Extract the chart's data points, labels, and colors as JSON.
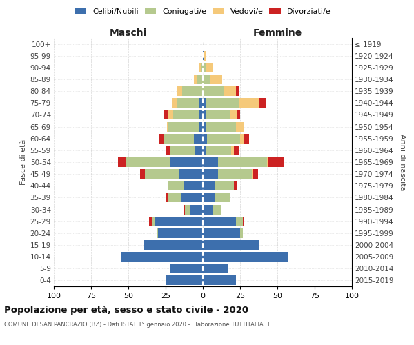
{
  "age_groups": [
    "0-4",
    "5-9",
    "10-14",
    "15-19",
    "20-24",
    "25-29",
    "30-34",
    "35-39",
    "40-44",
    "45-49",
    "50-54",
    "55-59",
    "60-64",
    "65-69",
    "70-74",
    "75-79",
    "80-84",
    "85-89",
    "90-94",
    "95-99",
    "100+"
  ],
  "birth_years": [
    "2015-2019",
    "2010-2014",
    "2005-2009",
    "2000-2004",
    "1995-1999",
    "1990-1994",
    "1985-1989",
    "1980-1984",
    "1975-1979",
    "1970-1974",
    "1965-1969",
    "1960-1964",
    "1955-1959",
    "1950-1954",
    "1945-1949",
    "1940-1944",
    "1935-1939",
    "1930-1934",
    "1925-1929",
    "1920-1924",
    "≤ 1919"
  ],
  "maschi": {
    "celibi": [
      25,
      22,
      55,
      40,
      30,
      32,
      9,
      15,
      13,
      16,
      22,
      5,
      6,
      3,
      3,
      3,
      0,
      0,
      0,
      0,
      0
    ],
    "coniugati": [
      0,
      0,
      0,
      0,
      1,
      2,
      3,
      8,
      10,
      23,
      30,
      17,
      20,
      20,
      17,
      14,
      14,
      4,
      1,
      0,
      0
    ],
    "vedovi": [
      0,
      0,
      0,
      0,
      0,
      0,
      0,
      0,
      0,
      0,
      0,
      0,
      0,
      1,
      3,
      4,
      3,
      2,
      2,
      0,
      0
    ],
    "divorziati": [
      0,
      0,
      0,
      0,
      0,
      2,
      1,
      2,
      0,
      3,
      5,
      3,
      3,
      0,
      3,
      0,
      0,
      0,
      0,
      0,
      0
    ]
  },
  "femmine": {
    "nubili": [
      22,
      17,
      57,
      38,
      25,
      22,
      7,
      8,
      8,
      10,
      10,
      2,
      3,
      2,
      2,
      2,
      0,
      0,
      0,
      1,
      0
    ],
    "coniugate": [
      0,
      0,
      0,
      0,
      2,
      5,
      5,
      10,
      13,
      23,
      33,
      17,
      22,
      20,
      16,
      22,
      14,
      5,
      2,
      0,
      0
    ],
    "vedove": [
      0,
      0,
      0,
      0,
      0,
      0,
      0,
      0,
      0,
      1,
      1,
      2,
      3,
      6,
      5,
      14,
      8,
      8,
      5,
      1,
      0
    ],
    "divorziate": [
      0,
      0,
      0,
      0,
      0,
      1,
      0,
      0,
      2,
      3,
      10,
      3,
      3,
      0,
      2,
      4,
      2,
      0,
      0,
      0,
      0
    ]
  },
  "colors": {
    "celibi": "#3d6fad",
    "coniugati": "#b5c98e",
    "vedovi": "#f5c97a",
    "divorziati": "#cc2222"
  },
  "xlim": 100,
  "title": "Popolazione per età, sesso e stato civile - 2020",
  "subtitle": "COMUNE DI SAN PANCRAZIO (BZ) - Dati ISTAT 1° gennaio 2020 - Elaborazione TUTTITALIA.IT",
  "ylabel_left": "Fasce di età",
  "ylabel_right": "Anni di nascita",
  "legend_labels": [
    "Celibi/Nubili",
    "Coniugati/e",
    "Vedovi/e",
    "Divorziati/e"
  ]
}
